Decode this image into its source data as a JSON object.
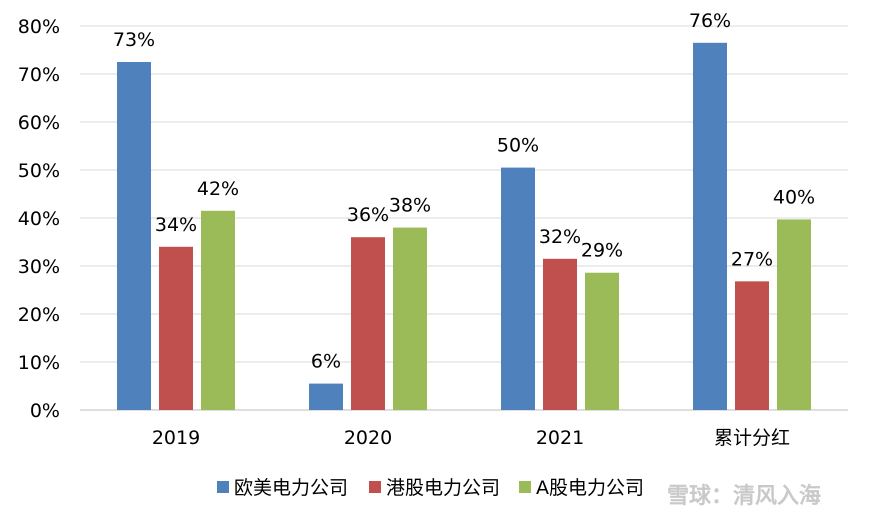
{
  "chart_data": {
    "type": "bar",
    "categories": [
      "2019",
      "2020",
      "2021",
      "累计分红"
    ],
    "series": [
      {
        "name": "欧美电力公司",
        "color": "#4f81bd",
        "values": [
          72.5,
          5.5,
          50.5,
          76.5
        ],
        "labels": [
          "73%",
          "6%",
          "50%",
          "76%"
        ]
      },
      {
        "name": "港股电力公司",
        "color": "#c0504d",
        "values": [
          34,
          36,
          31.5,
          26.8
        ],
        "labels": [
          "34%",
          "36%",
          "32%",
          "27%"
        ]
      },
      {
        "name": "A股电力公司",
        "color": "#9bbb59",
        "values": [
          41.5,
          38,
          28.6,
          39.7
        ],
        "labels": [
          "42%",
          "38%",
          "29%",
          "40%"
        ]
      }
    ],
    "yticks": [
      "0%",
      "10%",
      "20%",
      "30%",
      "40%",
      "50%",
      "60%",
      "70%",
      "80%"
    ],
    "ylim": [
      0,
      80
    ],
    "grid": true,
    "legend_position": "bottom"
  },
  "watermark": {
    "text": "雪球：清风入海"
  }
}
